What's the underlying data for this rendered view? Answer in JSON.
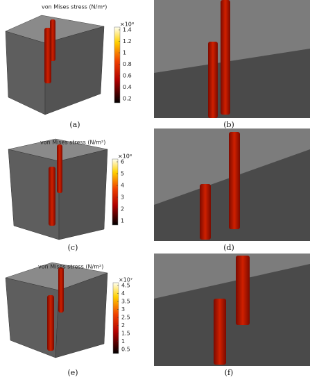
{
  "panels": [
    {
      "label": "(a)",
      "colorbar": {
        "title": "von Mises stress (N/m²)",
        "multiplier": "×10⁸",
        "ticks": [
          1.4,
          1.2,
          1,
          0.8,
          0.6,
          0.4,
          0.2
        ]
      }
    },
    {
      "label": "(b)"
    },
    {
      "label": "(c)",
      "colorbar": {
        "title": "von Mises stress (N/m²)",
        "multiplier": "×10⁸",
        "ticks": [
          6,
          5,
          4,
          3,
          2,
          1
        ]
      }
    },
    {
      "label": "(d)"
    },
    {
      "label": "(e)",
      "colorbar": {
        "title": "von Mises stress (N/m²)",
        "multiplier": "×10⁷",
        "ticks": [
          4.5,
          4,
          3.5,
          3,
          2.5,
          2,
          1.5,
          1,
          0.5
        ]
      }
    },
    {
      "label": "(f)"
    }
  ]
}
